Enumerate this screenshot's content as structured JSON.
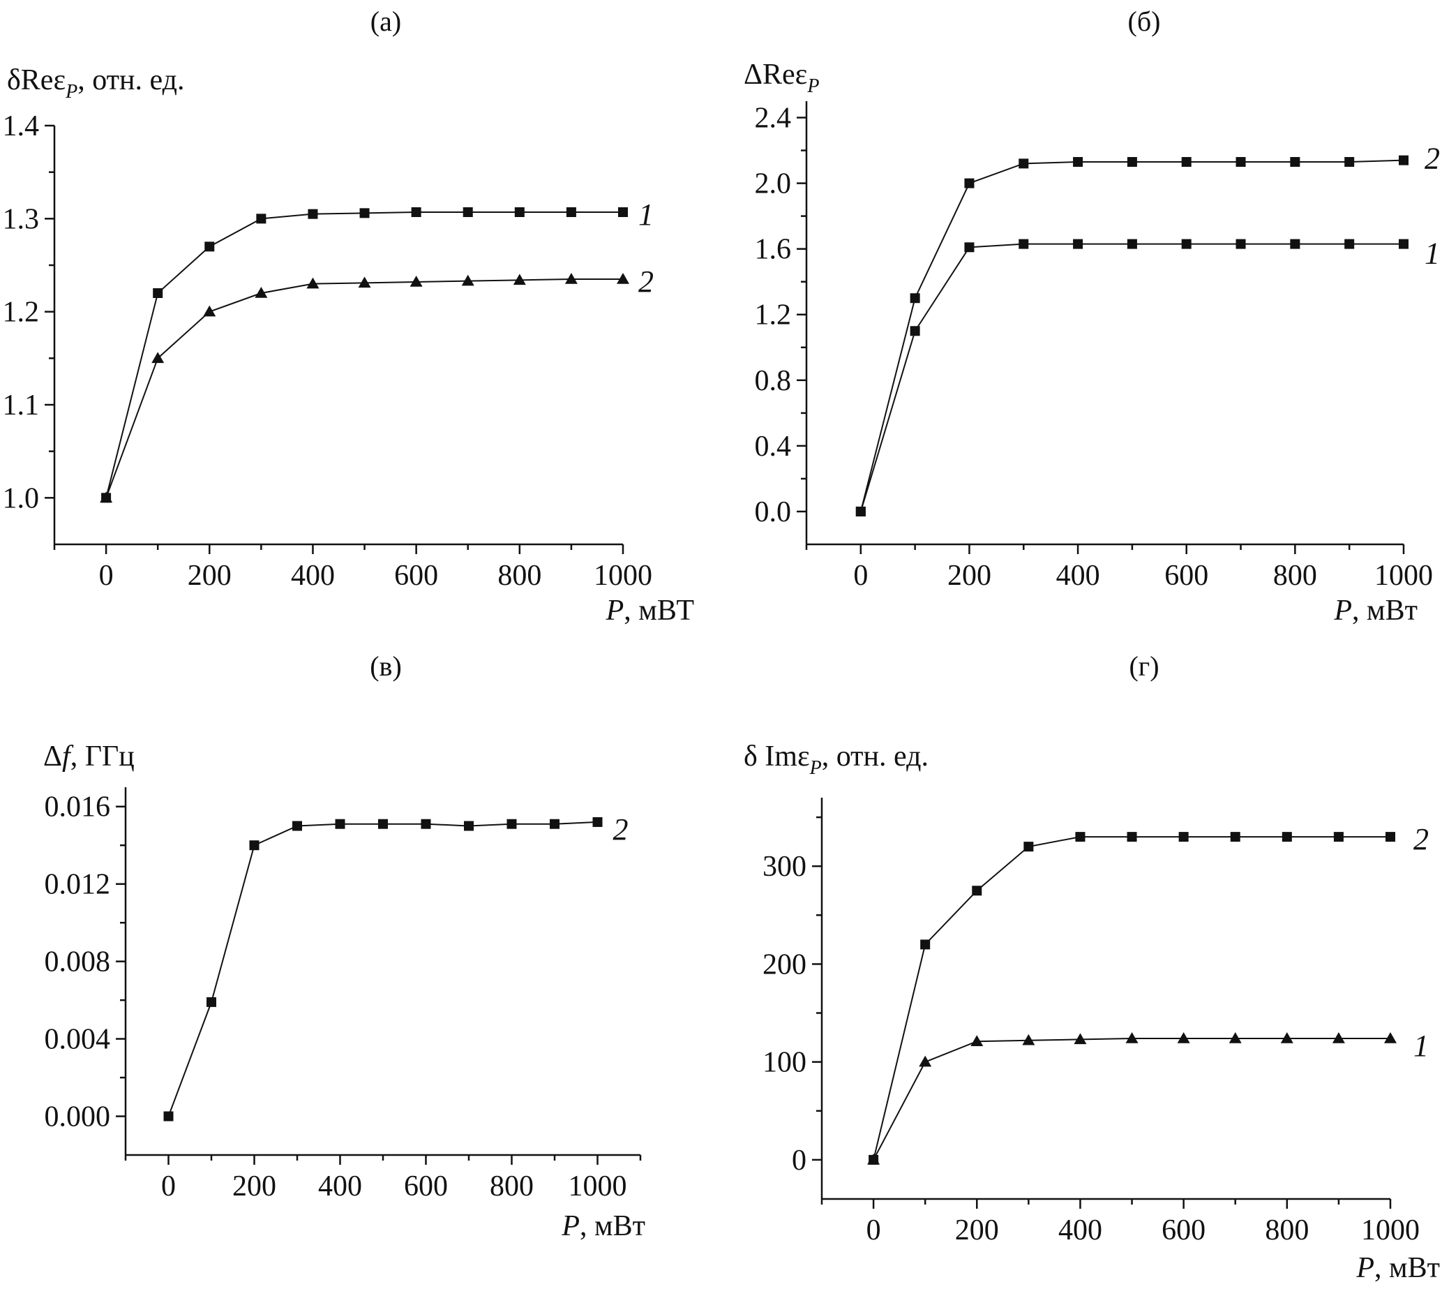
{
  "chart_data": [
    {
      "type": "line",
      "panel": "(a)",
      "ylabel_main": "δReε",
      "ylabel_sub": "P",
      "ylabel_suffix": ", отн. ед.",
      "xlabel_var": "P",
      "xlabel_unit": ", мВТ",
      "xlim": [
        -100,
        1000
      ],
      "ylim": [
        0.95,
        1.4
      ],
      "xticks": [
        0,
        200,
        400,
        600,
        800,
        1000
      ],
      "xticks_minor": [
        -100,
        100,
        300,
        500,
        700,
        900
      ],
      "yticks": [
        1.0,
        1.1,
        1.2,
        1.3,
        1.4
      ],
      "yticks_minor": [
        1.05,
        1.15,
        1.25,
        1.35
      ],
      "ytick_labels": [
        "1.0",
        "1.1",
        "1.2",
        "1.3",
        "1.4"
      ],
      "x": [
        0,
        100,
        200,
        300,
        400,
        500,
        600,
        700,
        800,
        900,
        1000
      ],
      "series": [
        {
          "name": "1",
          "marker": "square",
          "values": [
            1.0,
            1.22,
            1.27,
            1.3,
            1.305,
            1.306,
            1.307,
            1.307,
            1.307,
            1.307,
            1.307
          ]
        },
        {
          "name": "2",
          "marker": "triangle",
          "values": [
            1.0,
            1.15,
            1.2,
            1.22,
            1.23,
            1.231,
            1.232,
            1.233,
            1.234,
            1.235,
            1.235
          ]
        }
      ]
    },
    {
      "type": "line",
      "panel": "(б)",
      "ylabel_main": "ΔReε",
      "ylabel_sub": "P",
      "ylabel_suffix": "",
      "xlabel_var": "P",
      "xlabel_unit": ", мВт",
      "xlim": [
        -100,
        1000
      ],
      "ylim": [
        -0.2,
        2.5
      ],
      "xticks": [
        0,
        200,
        400,
        600,
        800,
        1000
      ],
      "xticks_minor": [
        -100,
        100,
        300,
        500,
        700,
        900
      ],
      "yticks": [
        0.0,
        0.4,
        0.8,
        1.2,
        1.6,
        2.0,
        2.4
      ],
      "yticks_minor": [
        0.2,
        0.6,
        1.0,
        1.4,
        1.8,
        2.2
      ],
      "ytick_labels": [
        "0.0",
        "0.4",
        "0.8",
        "1.2",
        "1.6",
        "2.0",
        "2.4"
      ],
      "x": [
        0,
        100,
        200,
        300,
        400,
        500,
        600,
        700,
        800,
        900,
        1000
      ],
      "series": [
        {
          "name": "1",
          "marker": "square",
          "values": [
            0.0,
            1.1,
            1.61,
            1.63,
            1.63,
            1.63,
            1.63,
            1.63,
            1.63,
            1.63,
            1.63
          ]
        },
        {
          "name": "2",
          "marker": "square",
          "values": [
            0.0,
            1.3,
            2.0,
            2.12,
            2.13,
            2.13,
            2.13,
            2.13,
            2.13,
            2.13,
            2.14
          ]
        }
      ]
    },
    {
      "type": "line",
      "panel": "(в)",
      "ylabel_main": "Δ",
      "ylabel_italic": "f",
      "ylabel_sub": "",
      "ylabel_suffix": ", ГГц",
      "xlabel_var": "P",
      "xlabel_unit": ", мВт",
      "xlim": [
        -100,
        1100
      ],
      "ylim": [
        -0.002,
        0.017
      ],
      "xticks": [
        0,
        200,
        400,
        600,
        800,
        1000
      ],
      "xticks_minor": [
        -100,
        100,
        300,
        500,
        700,
        900,
        1100
      ],
      "yticks": [
        0.0,
        0.004,
        0.008,
        0.012,
        0.016
      ],
      "yticks_minor": [
        0.002,
        0.006,
        0.01,
        0.014
      ],
      "ytick_labels": [
        "0.000",
        "0.004",
        "0.008",
        "0.012",
        "0.016"
      ],
      "x": [
        0,
        100,
        200,
        300,
        400,
        500,
        600,
        700,
        800,
        900,
        1000
      ],
      "series": [
        {
          "name": "2",
          "marker": "square",
          "values": [
            0.0,
            0.0059,
            0.014,
            0.015,
            0.0151,
            0.0151,
            0.0151,
            0.015,
            0.0151,
            0.0151,
            0.0152
          ]
        }
      ]
    },
    {
      "type": "line",
      "panel": "(г)",
      "ylabel_main": "δ Imε",
      "ylabel_sub": "P",
      "ylabel_suffix": ", отн. ед.",
      "xlabel_var": "P",
      "xlabel_unit": ", мВт",
      "xlim": [
        -100,
        1000
      ],
      "ylim": [
        -40,
        370
      ],
      "xticks": [
        0,
        200,
        400,
        600,
        800,
        1000
      ],
      "xticks_minor": [
        -100,
        100,
        300,
        500,
        700,
        900
      ],
      "yticks": [
        0,
        100,
        200,
        300
      ],
      "yticks_minor": [
        50,
        150,
        250,
        350
      ],
      "ytick_labels": [
        "0",
        "100",
        "200",
        "300"
      ],
      "x": [
        0,
        100,
        200,
        300,
        400,
        500,
        600,
        700,
        800,
        900,
        1000
      ],
      "series": [
        {
          "name": "1",
          "marker": "triangle",
          "values": [
            0,
            100,
            121,
            122,
            123,
            124,
            124,
            124,
            124,
            124,
            124
          ]
        },
        {
          "name": "2",
          "marker": "square",
          "values": [
            0,
            220,
            275,
            320,
            330,
            330,
            330,
            330,
            330,
            330,
            330
          ]
        }
      ]
    }
  ]
}
